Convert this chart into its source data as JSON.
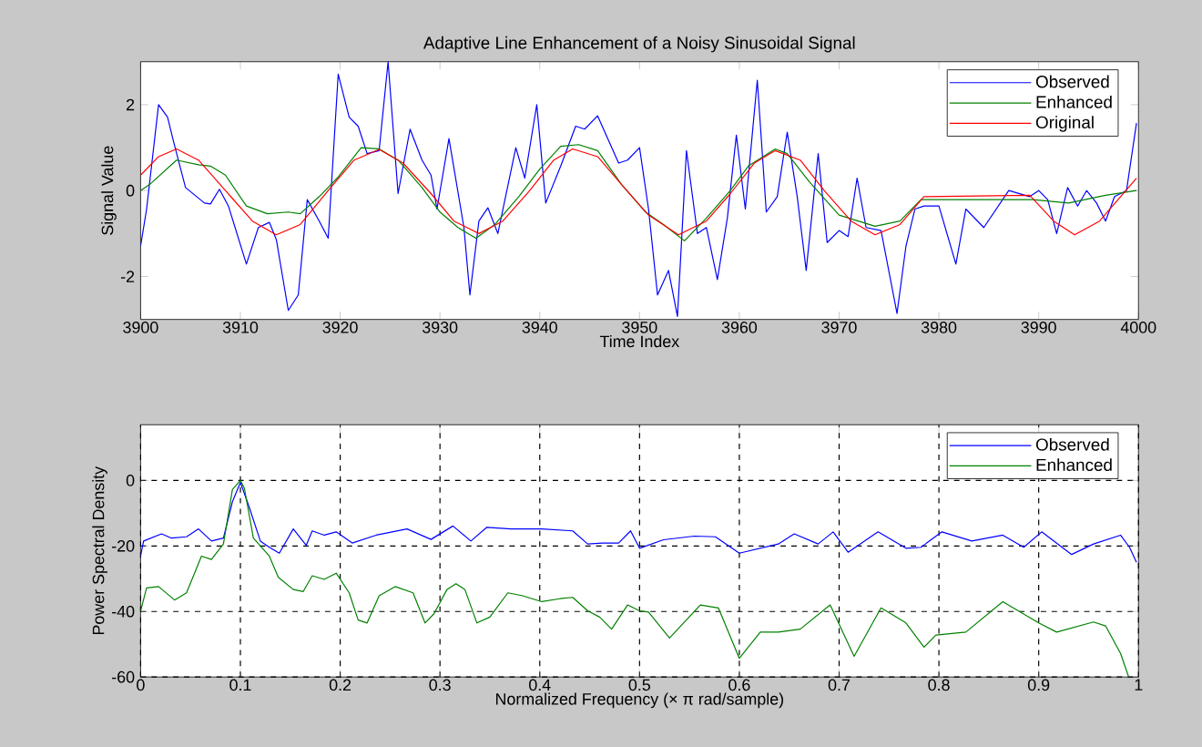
{
  "chart_data": [
    {
      "type": "line",
      "title": "Adaptive Line Enhancement of a Noisy Sinusoidal Signal",
      "xlabel": "Time Index",
      "ylabel": "Signal Value",
      "xlim": [
        3900,
        4000
      ],
      "ylim": [
        -3,
        3
      ],
      "xticks": [
        3900,
        3910,
        3920,
        3930,
        3940,
        3950,
        3960,
        3970,
        3980,
        3990,
        4000
      ],
      "yticks": [
        -2,
        0,
        2
      ],
      "grid": false,
      "legend": "top right",
      "marker": "none",
      "line_style": "solid",
      "series": [
        {
          "name": "Observed",
          "color": "#0000ff",
          "x": [
            3900,
            3900.6,
            3901.8,
            3902.7,
            3903.3,
            3904.5,
            3906.4,
            3907,
            3907.9,
            3908.8,
            3910.6,
            3911.8,
            3912.9,
            3913.6,
            3914.8,
            3915.8,
            3916.7,
            3917.9,
            3918.8,
            3919.8,
            3920.9,
            3921.8,
            3922.7,
            3923.9,
            3924.8,
            3925.8,
            3927,
            3928.2,
            3929.1,
            3929.7,
            3930.9,
            3932.4,
            3933,
            3933.9,
            3934.8,
            3935.8,
            3937.6,
            3938.5,
            3939.7,
            3940.6,
            3942.1,
            3943.6,
            3944.5,
            3945.8,
            3947.9,
            3948.8,
            3950,
            3950.9,
            3951.8,
            3952.9,
            3953.8,
            3954.7,
            3955.8,
            3956.7,
            3957.8,
            3958.8,
            3959.7,
            3960.6,
            3961,
            3961.8,
            3962.7,
            3963.8,
            3964.8,
            3965.8,
            3966.7,
            3967.9,
            3968.8,
            3970,
            3970.9,
            3971.8,
            3972.7,
            3974.2,
            3975.8,
            3976.7,
            3977.6,
            3978.5,
            3980,
            3981.7,
            3982.7,
            3984.5,
            3987,
            3989.1,
            3990,
            3990.9,
            3991.8,
            3992.9,
            3993.9,
            3994.8,
            3995.8,
            3996.7,
            3997.6,
            3998.8,
            3999.8
          ],
          "values": [
            -1.29,
            -0.43,
            2.0,
            1.71,
            1.14,
            0.07,
            -0.29,
            -0.31,
            0.03,
            -0.36,
            -1.71,
            -0.86,
            -0.74,
            -1.14,
            -2.79,
            -2.43,
            -0.21,
            -0.71,
            -1.11,
            2.71,
            1.71,
            1.5,
            0.86,
            0.93,
            3.0,
            -0.07,
            1.43,
            0.71,
            0.36,
            -0.43,
            1.21,
            -0.86,
            -2.43,
            -0.71,
            -0.4,
            -1.0,
            1.0,
            0.29,
            2.0,
            -0.29,
            0.57,
            1.5,
            1.43,
            1.74,
            0.64,
            0.71,
            1.0,
            -0.43,
            -2.43,
            -1.86,
            -2.93,
            0.93,
            -1.0,
            -0.86,
            -2.07,
            -0.64,
            1.29,
            -0.43,
            0.57,
            2.57,
            -0.5,
            -0.14,
            1.36,
            -0.14,
            -1.86,
            0.86,
            -1.21,
            -0.93,
            -1.07,
            0.29,
            -0.86,
            -0.93,
            -2.86,
            -1.29,
            -0.43,
            -0.36,
            -0.36,
            -1.71,
            -0.43,
            -0.86,
            0,
            -0.14,
            0,
            -0.21,
            -1.0,
            0.07,
            -0.36,
            0,
            -0.29,
            -0.71,
            -0.14,
            0,
            1.57
          ]
        },
        {
          "name": "Enhanced",
          "color": "#008000",
          "x": [
            3900,
            3900.9,
            3903.6,
            3905.8,
            3907,
            3908.5,
            3910.6,
            3912.7,
            3914.8,
            3916,
            3917.9,
            3919.7,
            3922.1,
            3923.9,
            3925.8,
            3928.2,
            3930,
            3931.8,
            3933.6,
            3935.5,
            3937.9,
            3940,
            3942.1,
            3943.9,
            3945.8,
            3948.2,
            3950.6,
            3952.4,
            3954.5,
            3956.7,
            3959.1,
            3960.9,
            3963.6,
            3964.8,
            3967,
            3970,
            3973.6,
            3976.1,
            3978.2,
            3989.4,
            3993,
            3996.7,
            3999.8
          ],
          "values": [
            0,
            0.14,
            0.71,
            0.6,
            0.57,
            0.36,
            -0.36,
            -0.54,
            -0.5,
            -0.54,
            -0.14,
            0.29,
            1.0,
            0.97,
            0.71,
            0.07,
            -0.5,
            -0.86,
            -1.11,
            -0.79,
            -0.14,
            0.5,
            1.03,
            1.07,
            0.93,
            0.14,
            -0.5,
            -0.79,
            -1.17,
            -0.64,
            0,
            0.57,
            0.97,
            0.86,
            0.21,
            -0.57,
            -0.83,
            -0.71,
            -0.21,
            -0.21,
            -0.29,
            -0.11,
            0
          ]
        },
        {
          "name": "Original",
          "color": "#ff0000",
          "x": [
            3900,
            3901.8,
            3903.6,
            3905.8,
            3908.5,
            3911.2,
            3913.6,
            3916,
            3918.8,
            3921.4,
            3923.9,
            3926.3,
            3929.1,
            3931.4,
            3933.9,
            3936.3,
            3939,
            3941.4,
            3943.3,
            3945.8,
            3948.2,
            3950.9,
            3953.9,
            3956.7,
            3959.1,
            3961.5,
            3963.6,
            3966.1,
            3968.5,
            3971.2,
            3973.6,
            3976.1,
            3978.5,
            3989.1,
            3991.5,
            3993.6,
            3996.1,
            3999.8
          ],
          "values": [
            0.36,
            0.79,
            0.97,
            0.71,
            0,
            -0.71,
            -1.03,
            -0.79,
            0,
            0.71,
            0.96,
            0.64,
            -0.07,
            -0.71,
            -1.0,
            -0.71,
            0,
            0.71,
            0.97,
            0.79,
            0.14,
            -0.57,
            -1.03,
            -0.71,
            -0.07,
            0.64,
            0.93,
            0.71,
            0,
            -0.71,
            -1.03,
            -0.79,
            -0.14,
            -0.11,
            -0.71,
            -1.03,
            -0.71,
            0.29
          ]
        }
      ]
    },
    {
      "type": "line",
      "xlabel": "Normalized Frequency (× π rad/sample)",
      "ylabel": "Power Spectral Density",
      "xlim": [
        0,
        1
      ],
      "ylim": [
        -60,
        17
      ],
      "xticks": [
        0,
        0.1,
        0.2,
        0.3,
        0.4,
        0.5,
        0.6,
        0.7,
        0.8,
        0.9,
        1
      ],
      "yticks": [
        -60,
        -40,
        -20,
        0
      ],
      "grid": true,
      "legend": "top right",
      "marker": "none",
      "line_style": "solid",
      "series": [
        {
          "name": "Observed",
          "color": "#0000ff",
          "x": [
            0,
            0.003,
            0.021,
            0.031,
            0.046,
            0.058,
            0.071,
            0.083,
            0.092,
            0.1,
            0.109,
            0.12,
            0.129,
            0.139,
            0.153,
            0.166,
            0.172,
            0.184,
            0.196,
            0.212,
            0.236,
            0.267,
            0.291,
            0.313,
            0.331,
            0.347,
            0.371,
            0.402,
            0.433,
            0.448,
            0.463,
            0.479,
            0.491,
            0.5,
            0.524,
            0.555,
            0.576,
            0.6,
            0.639,
            0.655,
            0.679,
            0.694,
            0.709,
            0.739,
            0.767,
            0.782,
            0.803,
            0.833,
            0.864,
            0.885,
            0.903,
            0.933,
            0.955,
            0.982,
            0.991,
            0.998
          ],
          "values": [
            -23,
            -18.5,
            -16.3,
            -17.6,
            -17.2,
            -14.8,
            -18.5,
            -17.6,
            -6.5,
            -0.6,
            -8.3,
            -18.5,
            -20.4,
            -22.2,
            -14.8,
            -19.8,
            -15.4,
            -16.7,
            -15.7,
            -19.1,
            -16.7,
            -14.8,
            -18,
            -13.9,
            -18.5,
            -14.3,
            -14.8,
            -14.8,
            -15.4,
            -19.4,
            -19.1,
            -19.1,
            -15.4,
            -20.7,
            -18.1,
            -17,
            -17.2,
            -22.2,
            -19.4,
            -16.3,
            -19.4,
            -15.7,
            -21.9,
            -15.7,
            -20.7,
            -20.4,
            -15.7,
            -18.5,
            -16.7,
            -20.4,
            -15.7,
            -22.6,
            -19.4,
            -16.7,
            -20.4,
            -25
          ]
        },
        {
          "name": "Enhanced",
          "color": "#008000",
          "x": [
            0,
            0.006,
            0.018,
            0.034,
            0.046,
            0.061,
            0.071,
            0.083,
            0.092,
            0.1,
            0.104,
            0.113,
            0.129,
            0.138,
            0.153,
            0.163,
            0.172,
            0.184,
            0.196,
            0.209,
            0.218,
            0.227,
            0.239,
            0.255,
            0.273,
            0.285,
            0.294,
            0.307,
            0.316,
            0.325,
            0.337,
            0.35,
            0.368,
            0.383,
            0.402,
            0.42,
            0.433,
            0.448,
            0.46,
            0.472,
            0.488,
            0.5,
            0.509,
            0.53,
            0.561,
            0.579,
            0.6,
            0.621,
            0.639,
            0.661,
            0.691,
            0.715,
            0.742,
            0.767,
            0.785,
            0.797,
            0.827,
            0.864,
            0.9,
            0.918,
            0.955,
            0.967,
            0.982,
            0.99
          ],
          "values": [
            -39.8,
            -32.8,
            -32.4,
            -36.5,
            -34.3,
            -23.1,
            -24.1,
            -19.4,
            -2.8,
            0,
            -2.4,
            -17.6,
            -23.1,
            -29.6,
            -33.3,
            -33.9,
            -29.1,
            -30.2,
            -28.3,
            -34.3,
            -42.6,
            -43.5,
            -35.2,
            -32.4,
            -34.3,
            -43.5,
            -40.7,
            -33.3,
            -31.5,
            -33.3,
            -43.5,
            -41.7,
            -34.3,
            -35.2,
            -37,
            -36.1,
            -35.7,
            -39.8,
            -41.7,
            -45.4,
            -38,
            -39.8,
            -40.2,
            -48.1,
            -38,
            -38.9,
            -54.3,
            -46.3,
            -46.3,
            -45.4,
            -38,
            -53.7,
            -38.9,
            -43.5,
            -50.9,
            -47.2,
            -46.3,
            -37,
            -43.5,
            -46.3,
            -43.2,
            -44.4,
            -52.8,
            -59.8
          ]
        }
      ]
    }
  ]
}
